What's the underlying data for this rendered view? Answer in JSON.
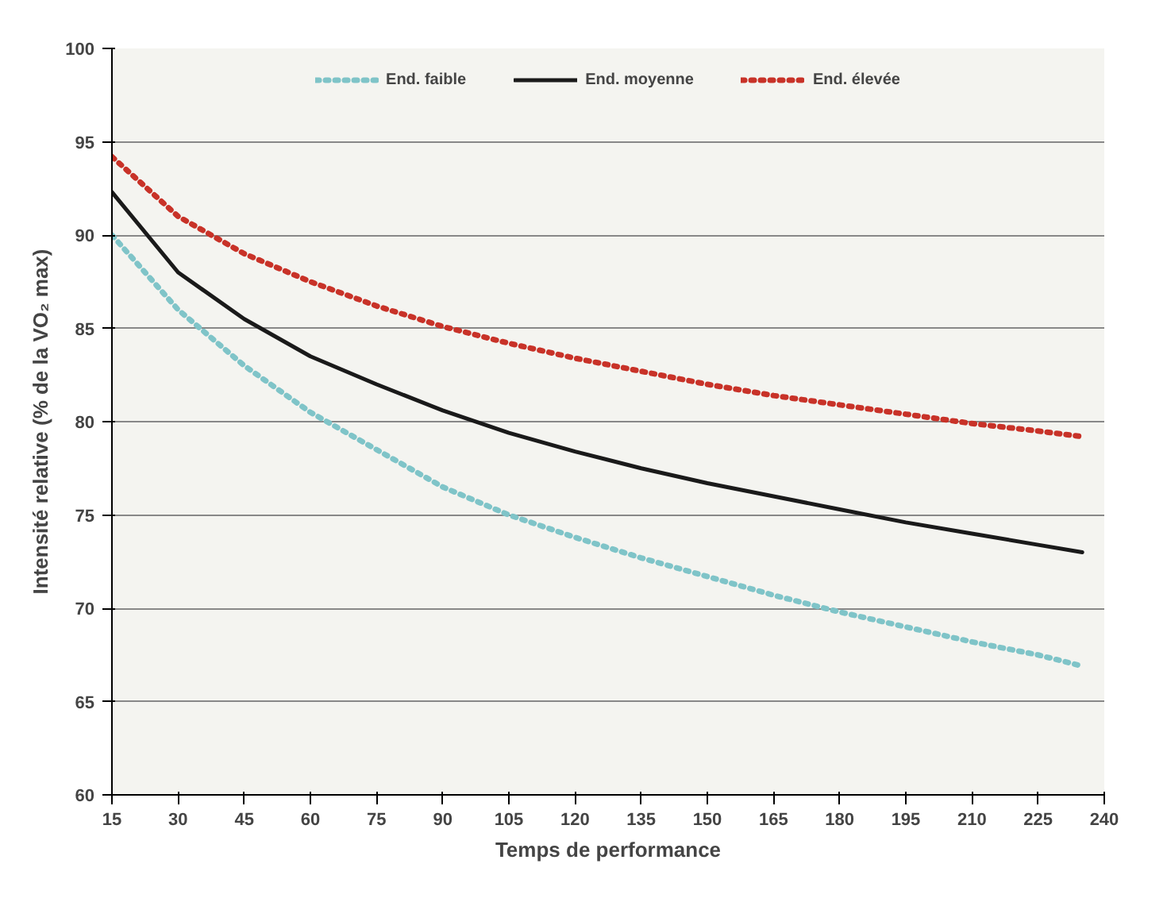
{
  "chart_data": {
    "type": "line",
    "xlabel": "Temps de performance",
    "ylabel": "Intensité relative (% de la VO₂ max)",
    "x": [
      15,
      30,
      45,
      60,
      75,
      90,
      105,
      120,
      135,
      150,
      165,
      180,
      195,
      210,
      225,
      235
    ],
    "series": [
      {
        "name": "End. faible",
        "color": "#7fc4c8",
        "line_style": "dotted",
        "values": [
          90,
          86,
          83,
          80.5,
          78.5,
          76.5,
          75,
          73.8,
          72.7,
          71.7,
          70.7,
          69.8,
          69,
          68.2,
          67.5,
          66.9
        ]
      },
      {
        "name": "End. moyenne",
        "color": "#1a1a1a",
        "line_style": "solid",
        "values": [
          92.3,
          88,
          85.5,
          83.5,
          82,
          80.6,
          79.4,
          78.4,
          77.5,
          76.7,
          76,
          75.3,
          74.6,
          74,
          73.4,
          73
        ]
      },
      {
        "name": "End. élevée",
        "color": "#c83228",
        "line_style": "dotted",
        "values": [
          94.2,
          91,
          89,
          87.5,
          86.2,
          85.1,
          84.2,
          83.4,
          82.7,
          82,
          81.4,
          80.9,
          80.4,
          79.9,
          79.5,
          79.2
        ]
      }
    ],
    "xlim": [
      15,
      240
    ],
    "xticks": [
      15,
      30,
      45,
      60,
      75,
      90,
      105,
      120,
      135,
      150,
      165,
      180,
      195,
      210,
      225,
      240
    ],
    "ylim": [
      60,
      100
    ],
    "yticks": [
      60,
      65,
      70,
      75,
      80,
      85,
      90,
      95,
      100
    ],
    "grid": "y",
    "legend": "top",
    "marker": "none"
  }
}
